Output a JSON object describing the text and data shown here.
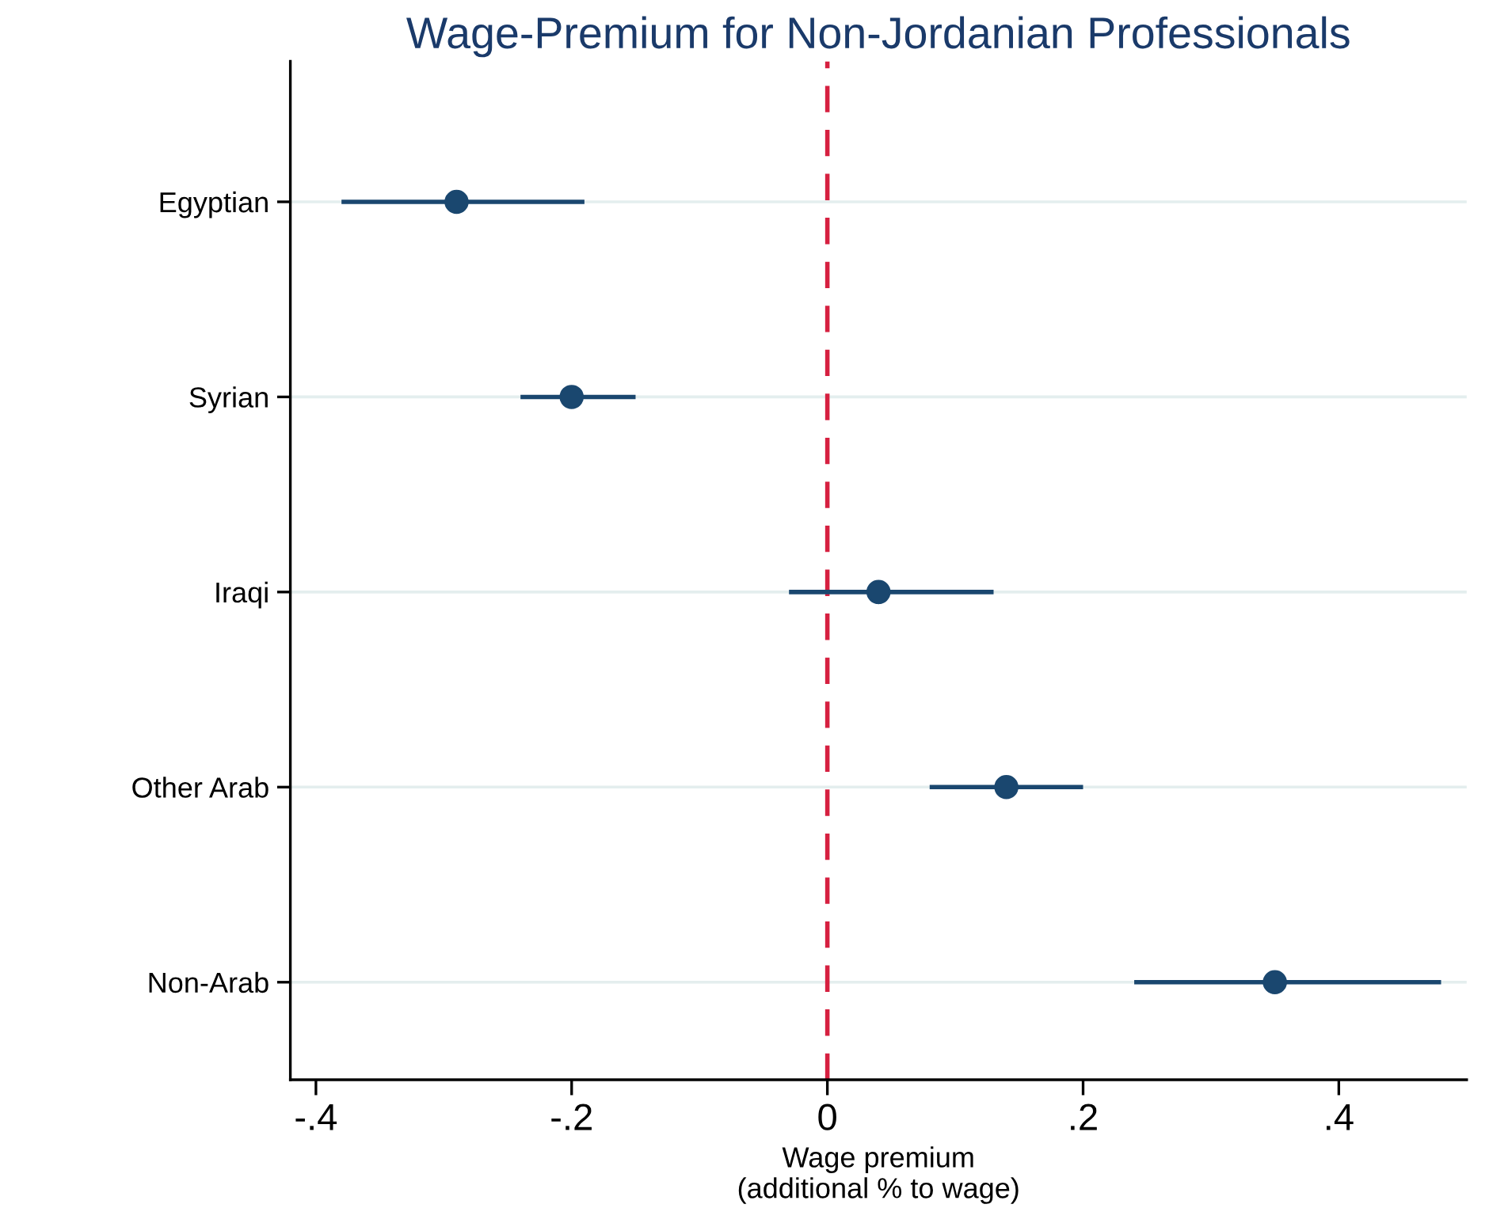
{
  "chart_data": {
    "type": "scatter",
    "orientation": "horizontal",
    "title": "Wage-Premium for Non-Jordanian Professionals",
    "xlabel": "Wage premium\n(additional % to wage)",
    "categories": [
      "Egyptian",
      "Syrian",
      "Iraqi",
      "Other Arab",
      "Non-Arab"
    ],
    "color": "#1a476f",
    "values": [
      -0.29,
      -0.2,
      0.04,
      0.14,
      0.35
    ],
    "errors": [
      [
        -0.38,
        -0.19
      ],
      [
        -0.24,
        -0.15
      ],
      [
        -0.03,
        0.13
      ],
      [
        0.08,
        0.2
      ],
      [
        0.24,
        0.48
      ]
    ],
    "xlim": [
      -0.42,
      0.5
    ],
    "xticks": [
      {
        "value": -0.4,
        "label": "-.4"
      },
      {
        "value": -0.2,
        "label": "-.2"
      },
      0,
      {
        "value": 0.2,
        "label": ".2"
      },
      {
        "value": 0.4,
        "label": ".4"
      }
    ],
    "ref_lines": [
      {
        "axis": "x",
        "value": 0,
        "color": "#d62040",
        "line_style": "dashed"
      }
    ],
    "grid": "y",
    "marker": "circle",
    "legend": false
  }
}
